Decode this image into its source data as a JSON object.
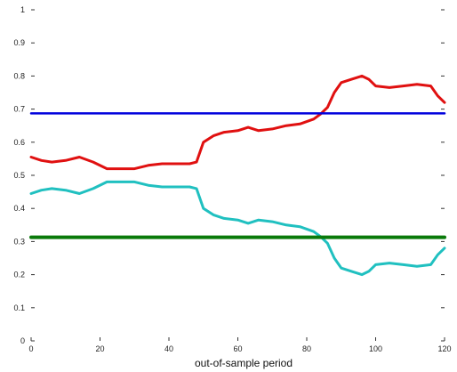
{
  "chart_data": {
    "type": "line",
    "title": "",
    "xlabel": "out-of-sample period",
    "ylabel": "",
    "xlim": [
      0,
      120
    ],
    "ylim": [
      0,
      1
    ],
    "xticks": [
      0,
      20,
      40,
      60,
      80,
      100,
      120
    ],
    "yticks": [
      0,
      0.1,
      0.2,
      0.3,
      0.4,
      0.5,
      0.6,
      0.7,
      0.8,
      0.9,
      1
    ],
    "ytick_labels": [
      "0",
      "0.1",
      "0.2",
      "0.3",
      "0.4",
      "0.5",
      "0.6",
      "0.7",
      "0.8",
      "0.9",
      "1"
    ],
    "grid": false,
    "legend": "none",
    "series": [
      {
        "color": "#e01010",
        "line_width": 3,
        "x": [
          0,
          3,
          6,
          10,
          14,
          18,
          22,
          26,
          30,
          34,
          38,
          42,
          46,
          48,
          50,
          53,
          56,
          60,
          63,
          66,
          70,
          74,
          78,
          82,
          84,
          86,
          88,
          90,
          93,
          96,
          98,
          100,
          104,
          108,
          112,
          116,
          118,
          120
        ],
        "y": [
          0.555,
          0.545,
          0.54,
          0.545,
          0.555,
          0.54,
          0.52,
          0.52,
          0.52,
          0.53,
          0.535,
          0.535,
          0.535,
          0.54,
          0.6,
          0.62,
          0.63,
          0.635,
          0.645,
          0.635,
          0.64,
          0.65,
          0.655,
          0.67,
          0.685,
          0.705,
          0.75,
          0.78,
          0.79,
          0.8,
          0.79,
          0.77,
          0.765,
          0.77,
          0.775,
          0.77,
          0.74,
          0.72
        ]
      },
      {
        "color": "#20c0c0",
        "line_width": 3,
        "x": [
          0,
          3,
          6,
          10,
          14,
          18,
          22,
          26,
          30,
          34,
          38,
          42,
          46,
          48,
          50,
          53,
          56,
          60,
          63,
          66,
          70,
          74,
          78,
          82,
          84,
          86,
          88,
          90,
          93,
          96,
          98,
          100,
          104,
          108,
          112,
          116,
          118,
          120
        ],
        "y": [
          0.445,
          0.455,
          0.46,
          0.455,
          0.445,
          0.46,
          0.48,
          0.48,
          0.48,
          0.47,
          0.465,
          0.465,
          0.465,
          0.46,
          0.4,
          0.38,
          0.37,
          0.365,
          0.355,
          0.365,
          0.36,
          0.35,
          0.345,
          0.33,
          0.315,
          0.295,
          0.25,
          0.22,
          0.21,
          0.2,
          0.21,
          0.23,
          0.235,
          0.23,
          0.225,
          0.23,
          0.26,
          0.28
        ]
      },
      {
        "color": "#0000dd",
        "line_width": 2.5,
        "x": [
          0,
          120
        ],
        "y": [
          0.687,
          0.687
        ]
      },
      {
        "color": "#0a7a0a",
        "line_width": 4,
        "x": [
          0,
          120
        ],
        "y": [
          0.313,
          0.313
        ]
      }
    ]
  }
}
